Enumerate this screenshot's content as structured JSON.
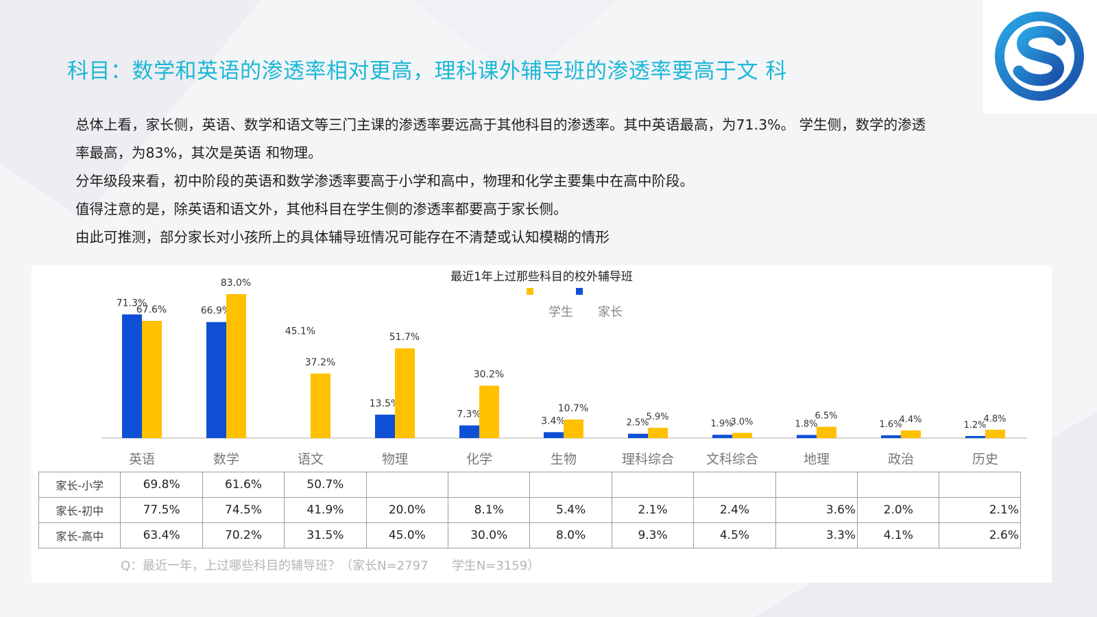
{
  "title": "科目：数学和英语的渗透率相对更高，理科课外辅导班的渗透率要高于文 科",
  "summary": [
    "总体上看，家长侧，英语、数学和语文等三门主课的渗透率要远高于其他科目的渗透率。其中英语最高，为71.3%。 学生侧，数学的渗透",
    "率最高，为83%，其次是英语 和物理。",
    "分年级段来看，初中阶段的英语和数学渗透率要高于小学和高中，物理和化学主要集中在高中阶段。",
    "值得注意的是，除英语和语文外，其他科目在学生侧的渗透率都要高于家长侧。",
    "由此可推测，部分家长对小孩所上的具体辅导班情况可能存在不清楚或认知模糊的情形"
  ],
  "colors": {
    "title": "#1cb7d6",
    "parent": "#0f4fd6",
    "student": "#ffc000"
  },
  "chart_data": {
    "type": "bar",
    "title": "最近1年上过那些科目的校外辅导班",
    "categories": [
      "英语",
      "数学",
      "语文",
      "物理",
      "化学",
      "生物",
      "理科综合",
      "文科综合",
      "地理",
      "政治",
      "历史"
    ],
    "series": [
      {
        "name": "家长",
        "color": "#0f4fd6",
        "values": [
          71.3,
          66.9,
          null,
          13.5,
          7.3,
          3.4,
          2.5,
          1.9,
          1.8,
          1.6,
          1.2
        ],
        "labels": [
          "71.3%",
          "66.9%",
          "45.1%",
          "13.5%",
          "7.3%",
          "3.4%",
          "2.5%",
          "1.9%",
          "1.8%",
          "1.6%",
          "1.2%"
        ]
      },
      {
        "name": "学生",
        "color": "#ffc000",
        "values": [
          67.6,
          83.0,
          37.2,
          51.7,
          30.2,
          10.7,
          5.9,
          3.0,
          6.5,
          4.4,
          4.8
        ],
        "labels": [
          "67.6%",
          "83.0%",
          "37.2%",
          "51.7%",
          "30.2%",
          "10.7%",
          "5.9%",
          "3.0%",
          "6.5%",
          "4.4%",
          "4.8%"
        ]
      }
    ],
    "legend": {
      "position": "top",
      "items": [
        "学生",
        "家长"
      ]
    },
    "ylim": [
      0,
      90
    ],
    "grid": false,
    "table": {
      "rows": [
        {
          "label": "家长-小学",
          "values": [
            "69.8%",
            "61.6%",
            "50.7%",
            "",
            "",
            "",
            "",
            "",
            "",
            "",
            ""
          ]
        },
        {
          "label": "家长-初中",
          "values": [
            "77.5%",
            "74.5%",
            "41.9%",
            "20.0%",
            "8.1%",
            "5.4%",
            "2.1%",
            "2.4%",
            "3.6%",
            "2.0%",
            "2.1%"
          ]
        },
        {
          "label": "家长-高中",
          "values": [
            "63.4%",
            "70.2%",
            "31.5%",
            "45.0%",
            "30.0%",
            "8.0%",
            "9.3%",
            "4.5%",
            "3.3%",
            "4.1%",
            "2.6%"
          ]
        }
      ]
    }
  },
  "note": "Q：最近一年，上过哪些科目的辅导班？（家长N=2797      学生N=3159）"
}
